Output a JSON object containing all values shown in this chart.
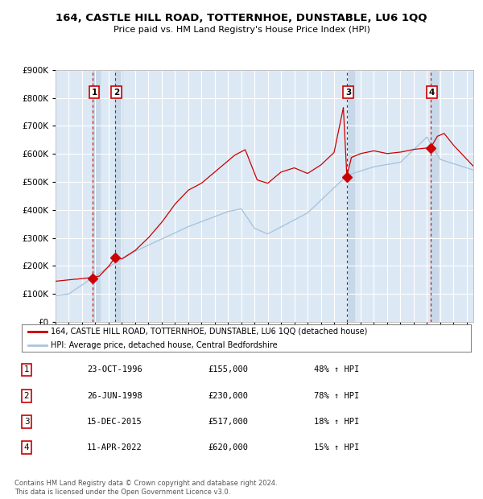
{
  "title": "164, CASTLE HILL ROAD, TOTTERNHOE, DUNSTABLE, LU6 1QQ",
  "subtitle": "Price paid vs. HM Land Registry's House Price Index (HPI)",
  "legend_line1": "164, CASTLE HILL ROAD, TOTTERNHOE, DUNSTABLE, LU6 1QQ (detached house)",
  "legend_line2": "HPI: Average price, detached house, Central Bedfordshire",
  "footer1": "Contains HM Land Registry data © Crown copyright and database right 2024.",
  "footer2": "This data is licensed under the Open Government Licence v3.0.",
  "red_color": "#cc0000",
  "blue_color": "#aac4dd",
  "background_chart": "#dce9f5",
  "shade_color": "#c8d8e8",
  "grid_color": "#ffffff",
  "sale_points": [
    {
      "date": 1996.81,
      "price": 155000,
      "label": "1"
    },
    {
      "date": 1998.49,
      "price": 230000,
      "label": "2"
    },
    {
      "date": 2015.96,
      "price": 517000,
      "label": "3"
    },
    {
      "date": 2022.28,
      "price": 620000,
      "label": "4"
    }
  ],
  "table_rows": [
    {
      "num": "1",
      "date": "23-OCT-1996",
      "price": "£155,000",
      "change": "48% ↑ HPI"
    },
    {
      "num": "2",
      "date": "26-JUN-1998",
      "price": "£230,000",
      "change": "78% ↑ HPI"
    },
    {
      "num": "3",
      "date": "15-DEC-2015",
      "price": "£517,000",
      "change": "18% ↑ HPI"
    },
    {
      "num": "4",
      "date": "11-APR-2022",
      "price": "£620,000",
      "change": "15% ↑ HPI"
    }
  ],
  "ylim": [
    0,
    900000
  ],
  "xlim_start": 1994.0,
  "xlim_end": 2025.5
}
